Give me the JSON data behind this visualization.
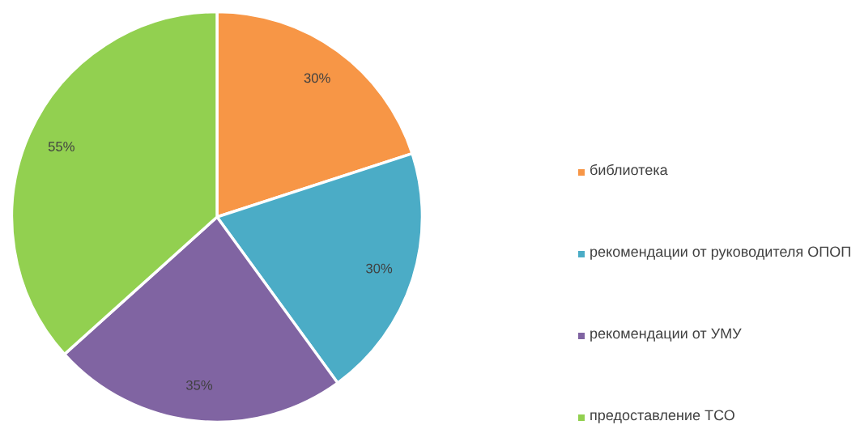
{
  "chart_data": {
    "type": "pie",
    "categories": [
      "библиотека",
      "рекомендации от руководителя ОПОП",
      "рекомендации от УМУ",
      "предоставление ТСО"
    ],
    "values": [
      30,
      30,
      35,
      55
    ],
    "value_labels": [
      "30%",
      "30%",
      "35%",
      "55%"
    ],
    "colors": [
      "#f79646",
      "#4bacc6",
      "#8064a2",
      "#92d050"
    ],
    "legend": "right"
  }
}
